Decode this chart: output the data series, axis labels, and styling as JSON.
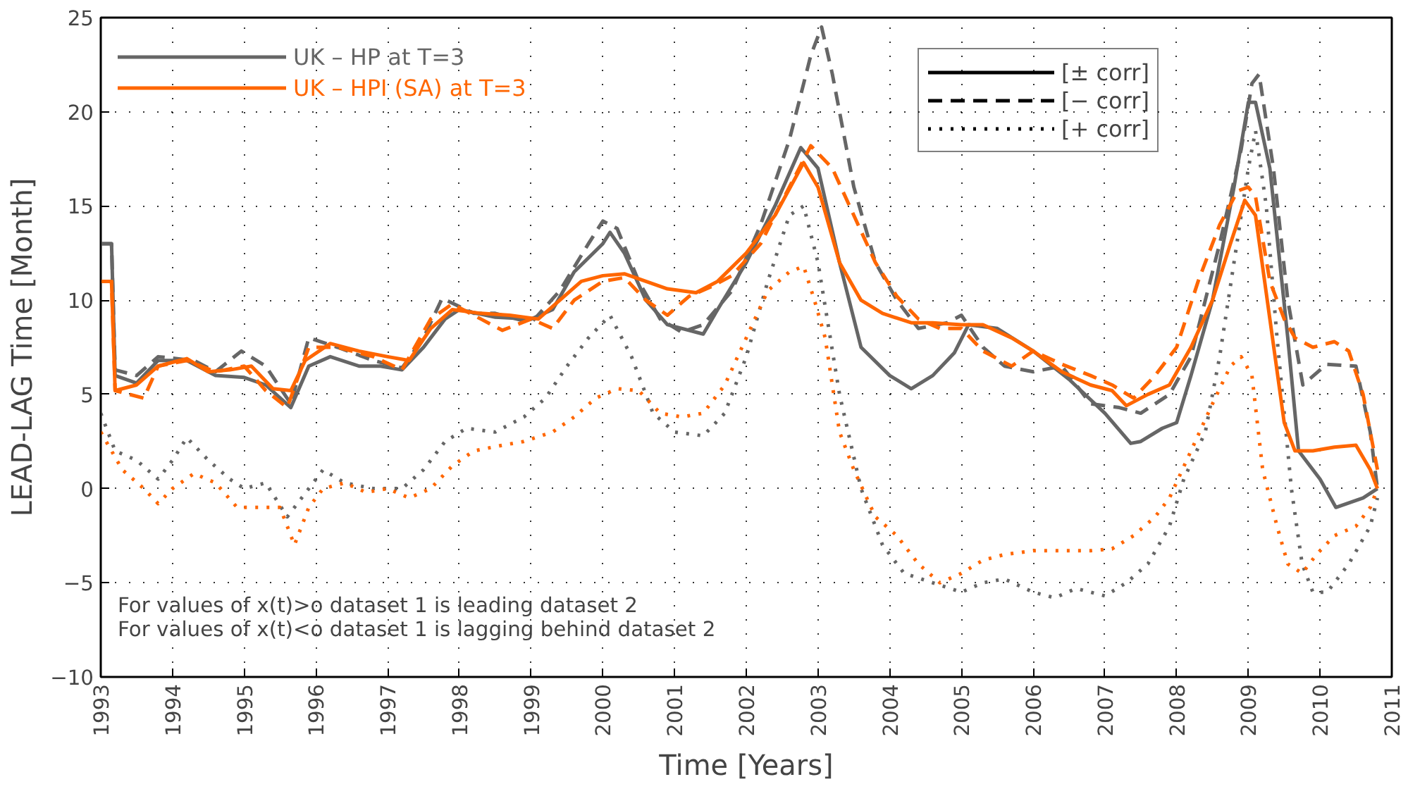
{
  "chart_data": {
    "type": "line",
    "xlabel": "Time [Years]",
    "ylabel": "LEAD-LAG Time [Month]",
    "xlim": [
      1993,
      2011
    ],
    "ylim": [
      -10,
      25
    ],
    "xticks": [
      1993,
      1994,
      1995,
      1996,
      1997,
      1998,
      1999,
      2000,
      2001,
      2002,
      2003,
      2004,
      2005,
      2006,
      2007,
      2008,
      2009,
      2010,
      2011
    ],
    "yticks": [
      -10,
      -5,
      0,
      5,
      10,
      15,
      20,
      25
    ],
    "grid": true,
    "legend": "top left",
    "marker": "none",
    "annotations": [
      "For values of x(t)>o dataset 1 is leading dataset 2",
      "For values of x(t)<o dataset 1 is lagging behind dataset 2",
      "[± corr]",
      "[− corr]",
      "[+ corr]"
    ],
    "series": [
      {
        "name": "UK – HP at T=3",
        "color": "#666666",
        "line_style": "solid",
        "x": [
          1993,
          1993.15,
          1993.2,
          1993.5,
          1993.8,
          1994.2,
          1994.6,
          1995.0,
          1995.3,
          1995.65,
          1995.9,
          1996.2,
          1996.6,
          1996.9,
          1997.2,
          1997.5,
          1997.8,
          1998.0,
          1998.5,
          1999.0,
          1999.3,
          1999.6,
          2000.0,
          2000.1,
          2000.3,
          2000.6,
          2000.9,
          2001.4,
          2001.6,
          2002.0,
          2002.4,
          2002.76,
          2003.0,
          2003.3,
          2003.6,
          2004.0,
          2004.3,
          2004.6,
          2004.9,
          2005.1,
          2005.5,
          2006.0,
          2006.5,
          2007.0,
          2007.36,
          2007.5,
          2007.8,
          2008.0,
          2008.2,
          2008.5,
          2008.8,
          2009.0,
          2009.1,
          2009.3,
          2009.55,
          2009.7,
          2010.0,
          2010.22,
          2010.6,
          2010.8
        ],
        "values": [
          13,
          13,
          6,
          5.6,
          6.8,
          6.8,
          6,
          5.9,
          5.5,
          4.3,
          6.5,
          7,
          6.5,
          6.5,
          6.3,
          7.5,
          9,
          9.5,
          9.1,
          9,
          9.5,
          11.5,
          13,
          13.6,
          12.5,
          10,
          8.7,
          8.2,
          9.5,
          12,
          15,
          18.1,
          17,
          12,
          7.5,
          6,
          5.3,
          6,
          7.2,
          8.7,
          8.5,
          7.3,
          5.8,
          4,
          2.4,
          2.5,
          3.2,
          3.5,
          6,
          10,
          16,
          20.5,
          20.5,
          17,
          8,
          2,
          0.5,
          -1,
          -0.5,
          0
        ]
      },
      {
        "color": "#666666",
        "line_style": "dashed",
        "x": [
          1993,
          1993.15,
          1993.2,
          1993.5,
          1993.8,
          1994.3,
          1994.6,
          1994.96,
          1995.3,
          1995.65,
          1995.9,
          1996.3,
          1996.8,
          1997.2,
          1997.5,
          1997.76,
          1998.2,
          1998.5,
          1999.0,
          1999.4,
          1999.8,
          2000.0,
          2000.2,
          2000.5,
          2000.8,
          2001.1,
          2001.4,
          2001.8,
          2002.2,
          2002.6,
          2002.9,
          2003.05,
          2003.2,
          2003.5,
          2003.8,
          2004.1,
          2004.4,
          2004.8,
          2005.0,
          2005.3,
          2005.6,
          2006.0,
          2006.4,
          2006.8,
          2007.2,
          2007.5,
          2007.9,
          2008.2,
          2008.6,
          2008.9,
          2009.05,
          2009.15,
          2009.35,
          2009.55,
          2009.76,
          2010.09,
          2010.5,
          2010.7,
          2010.8
        ],
        "values": [
          13,
          13,
          6.3,
          6,
          7,
          6.8,
          6.2,
          7.3,
          6.5,
          4.5,
          8,
          7.5,
          6.8,
          6.4,
          8,
          10.1,
          9.3,
          9.3,
          8.8,
          10.5,
          13,
          14.2,
          13.8,
          11,
          9,
          8.3,
          8.7,
          10.5,
          14,
          18.5,
          23,
          24.5,
          22,
          16,
          12,
          10,
          8.5,
          8.8,
          9.2,
          7.5,
          6.5,
          6.2,
          6.5,
          4.5,
          4.3,
          4,
          5,
          7,
          13,
          18,
          21.5,
          22,
          17,
          10,
          5.5,
          6.6,
          6.5,
          3,
          0
        ]
      },
      {
        "color": "#666666",
        "line_style": "dotted",
        "x": [
          1993,
          1993.2,
          1993.5,
          1993.8,
          1994.0,
          1994.2,
          1994.5,
          1994.8,
          1995.0,
          1995.3,
          1995.6,
          1995.8,
          1996.1,
          1996.4,
          1996.8,
          1997.2,
          1997.5,
          1997.8,
          1998.1,
          1998.5,
          1998.9,
          1999.2,
          1999.5,
          1999.8,
          2000.1,
          2000.4,
          2000.7,
          2001.0,
          2001.4,
          2001.7,
          2002.0,
          2002.3,
          2002.6,
          2002.8,
          2003.0,
          2003.3,
          2003.6,
          2003.9,
          2004.2,
          2004.6,
          2005.0,
          2005.3,
          2005.6,
          2006.0,
          2006.3,
          2006.6,
          2007.0,
          2007.3,
          2007.6,
          2007.9,
          2008.1,
          2008.4,
          2008.6,
          2008.8,
          2009.0,
          2009.1,
          2009.25,
          2009.4,
          2009.6,
          2009.75,
          2009.9,
          2010.1,
          2010.4,
          2010.7,
          2010.8
        ],
        "values": [
          4,
          2,
          1.5,
          0.5,
          1.5,
          2.7,
          1.5,
          0.5,
          0,
          0.3,
          -1.5,
          -0.5,
          1,
          0.3,
          0,
          0,
          1,
          2.5,
          3.2,
          3,
          3.8,
          4.8,
          6.5,
          8,
          9.2,
          7,
          4,
          3,
          2.8,
          4,
          7,
          11,
          14.5,
          15,
          12,
          5,
          0,
          -3,
          -4.5,
          -5,
          -5.5,
          -5,
          -4.8,
          -5.5,
          -5.8,
          -5.3,
          -5.7,
          -5,
          -4,
          -2,
          0.5,
          3,
          7,
          12,
          17,
          19,
          15,
          8,
          0,
          -4,
          -5.5,
          -5.5,
          -4,
          -2,
          -0.5
        ]
      },
      {
        "name": "UK – HPI (SA) at T=3",
        "color": "#ff6600",
        "line_style": "solid",
        "x": [
          1993,
          1993.15,
          1993.2,
          1993.5,
          1993.8,
          1994.2,
          1994.5,
          1994.8,
          1995.1,
          1995.4,
          1995.65,
          1995.85,
          1996.2,
          1996.6,
          1997.0,
          1997.3,
          1997.6,
          1997.9,
          1998.3,
          1998.7,
          1999.1,
          1999.4,
          1999.7,
          2000.0,
          2000.3,
          2000.6,
          2000.9,
          2001.3,
          2001.6,
          2002.0,
          2002.4,
          2002.8,
          2003.0,
          2003.3,
          2003.6,
          2003.9,
          2004.3,
          2004.6,
          2005.0,
          2005.3,
          2005.7,
          2006.0,
          2006.4,
          2006.8,
          2007.1,
          2007.3,
          2007.6,
          2007.9,
          2008.2,
          2008.5,
          2008.75,
          2008.95,
          2009.1,
          2009.3,
          2009.5,
          2009.65,
          2009.9,
          2010.2,
          2010.5,
          2010.7,
          2010.8
        ],
        "values": [
          11,
          11,
          5.2,
          5.5,
          6.5,
          6.9,
          6.2,
          6.3,
          6.5,
          5.3,
          5.2,
          6.8,
          7.7,
          7.3,
          7,
          6.8,
          8.5,
          9.5,
          9.3,
          9.2,
          9,
          10,
          11,
          11.3,
          11.4,
          11,
          10.6,
          10.4,
          11,
          12.5,
          14.5,
          17.3,
          16,
          12,
          10,
          9.3,
          8.8,
          8.8,
          8.7,
          8.7,
          8,
          7.3,
          6.2,
          5.5,
          5.2,
          4.4,
          5,
          5.5,
          7.5,
          10,
          13,
          15.3,
          14.5,
          9,
          3.5,
          2,
          2,
          2.2,
          2.3,
          1,
          0
        ]
      },
      {
        "color": "#ff6600",
        "line_style": "dashed",
        "x": [
          1993,
          1993.15,
          1993.2,
          1993.6,
          1993.8,
          1994.2,
          1994.6,
          1995.0,
          1995.3,
          1995.6,
          1995.9,
          1996.3,
          1996.8,
          1997.2,
          1997.6,
          1997.9,
          1998.3,
          1998.6,
          1999.0,
          1999.3,
          1999.6,
          2000.0,
          2000.3,
          2000.6,
          2000.9,
          2001.2,
          2001.5,
          2001.8,
          2002.2,
          2002.6,
          2002.9,
          2003.2,
          2003.5,
          2003.8,
          2004.1,
          2004.4,
          2004.7,
          2005.0,
          2005.3,
          2005.7,
          2006.0,
          2006.4,
          2006.8,
          2007.1,
          2007.4,
          2007.7,
          2008.0,
          2008.3,
          2008.6,
          2008.85,
          2009.0,
          2009.1,
          2009.3,
          2009.5,
          2009.65,
          2009.9,
          2010.2,
          2010.4,
          2010.6,
          2010.8
        ],
        "values": [
          11,
          11,
          5.2,
          4.8,
          6.5,
          6.8,
          6.2,
          6.5,
          5.2,
          4.3,
          7.5,
          7.5,
          7,
          6.3,
          9,
          9.8,
          9,
          8.4,
          9,
          8.5,
          10,
          11,
          11.2,
          10,
          9.2,
          10.2,
          10.7,
          11.3,
          13,
          16,
          18.2,
          17,
          14.5,
          12,
          10.2,
          9,
          8.5,
          8.5,
          7.3,
          6.5,
          7.3,
          6.6,
          6,
          5.5,
          4.8,
          6,
          7.5,
          11,
          14,
          15.8,
          16,
          15.5,
          11,
          9,
          8,
          7.5,
          7.8,
          7.3,
          5,
          1
        ]
      },
      {
        "color": "#ff6600",
        "line_style": "dotted",
        "x": [
          1993,
          1993.3,
          1993.6,
          1993.8,
          1994.0,
          1994.3,
          1994.6,
          1994.9,
          1995.2,
          1995.5,
          1995.7,
          1995.9,
          1996.1,
          1996.4,
          1996.7,
          1997.0,
          1997.3,
          1997.6,
          1997.9,
          1998.2,
          1998.6,
          1998.9,
          1999.3,
          1999.6,
          1999.9,
          2000.2,
          2000.5,
          2000.8,
          2001.1,
          2001.4,
          2001.7,
          2002.0,
          2002.3,
          2002.6,
          2002.8,
          2002.95,
          2003.1,
          2003.3,
          2003.5,
          2003.8,
          2004.1,
          2004.4,
          2004.7,
          2005.0,
          2005.3,
          2005.6,
          2006.0,
          2006.4,
          2006.8,
          2007.1,
          2007.4,
          2007.7,
          2007.9,
          2008.2,
          2008.5,
          2008.75,
          2008.9,
          2009.05,
          2009.2,
          2009.4,
          2009.55,
          2009.75,
          2009.95,
          2010.2,
          2010.5,
          2010.7,
          2010.8
        ],
        "values": [
          3,
          1,
          0,
          -0.8,
          0,
          0.8,
          0.3,
          -1,
          -1,
          -1,
          -3,
          -1,
          0,
          0.3,
          -0.2,
          0,
          -0.5,
          0,
          1.2,
          2,
          2.3,
          2.5,
          3,
          3.8,
          4.8,
          5.3,
          5.2,
          4,
          3.8,
          4,
          5.5,
          8,
          10.5,
          11.5,
          11.8,
          10,
          8,
          3,
          1,
          -1.5,
          -2.5,
          -4,
          -5,
          -4.5,
          -3.8,
          -3.5,
          -3.3,
          -3.3,
          -3.3,
          -3.2,
          -2.5,
          -1.5,
          -0.5,
          2,
          4.5,
          6.5,
          7,
          6,
          1,
          -2,
          -4,
          -4.5,
          -3.5,
          -2.5,
          -2,
          -1,
          0
        ]
      }
    ]
  }
}
